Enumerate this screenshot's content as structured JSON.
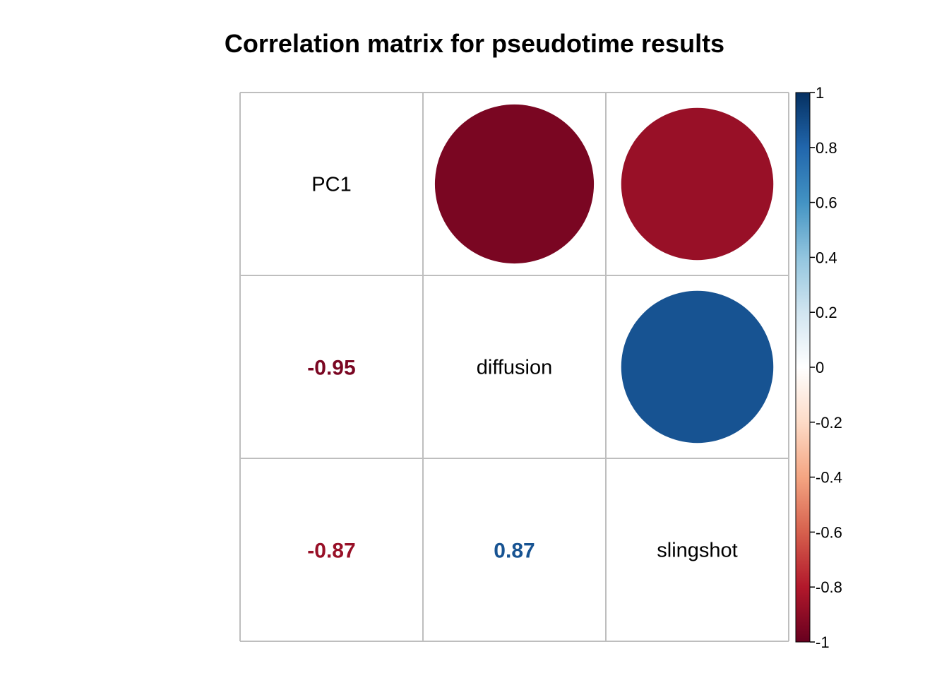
{
  "title": "Correlation matrix for pseudotime results",
  "chart_data": {
    "type": "heatmap",
    "title": "Correlation matrix for pseudotime results",
    "variables": [
      "PC1",
      "diffusion",
      "slingshot"
    ],
    "matrix": [
      [
        1,
        -0.95,
        -0.87
      ],
      [
        -0.95,
        1,
        0.87
      ],
      [
        -0.87,
        0.87,
        1
      ]
    ],
    "upper_method": "circle",
    "lower_method": "number",
    "diagonal": "variable names",
    "lower_labels": [
      {
        "row": 1,
        "col": 0,
        "text": "-0.95"
      },
      {
        "row": 2,
        "col": 0,
        "text": "-0.87"
      },
      {
        "row": 2,
        "col": 1,
        "text": "0.87"
      }
    ],
    "colorbar": {
      "range": [
        -1,
        1
      ],
      "ticks": [
        "1",
        "0.8",
        "0.6",
        "0.4",
        "0.2",
        "0",
        "-0.2",
        "-0.4",
        "-0.6",
        "-0.8",
        "-1"
      ],
      "placement": "right"
    },
    "colors": {
      "negative_strong": "#67001F",
      "positive_strong": "#053061",
      "neutral": "#FFFFFF",
      "grid": "#BEBEBE"
    }
  }
}
